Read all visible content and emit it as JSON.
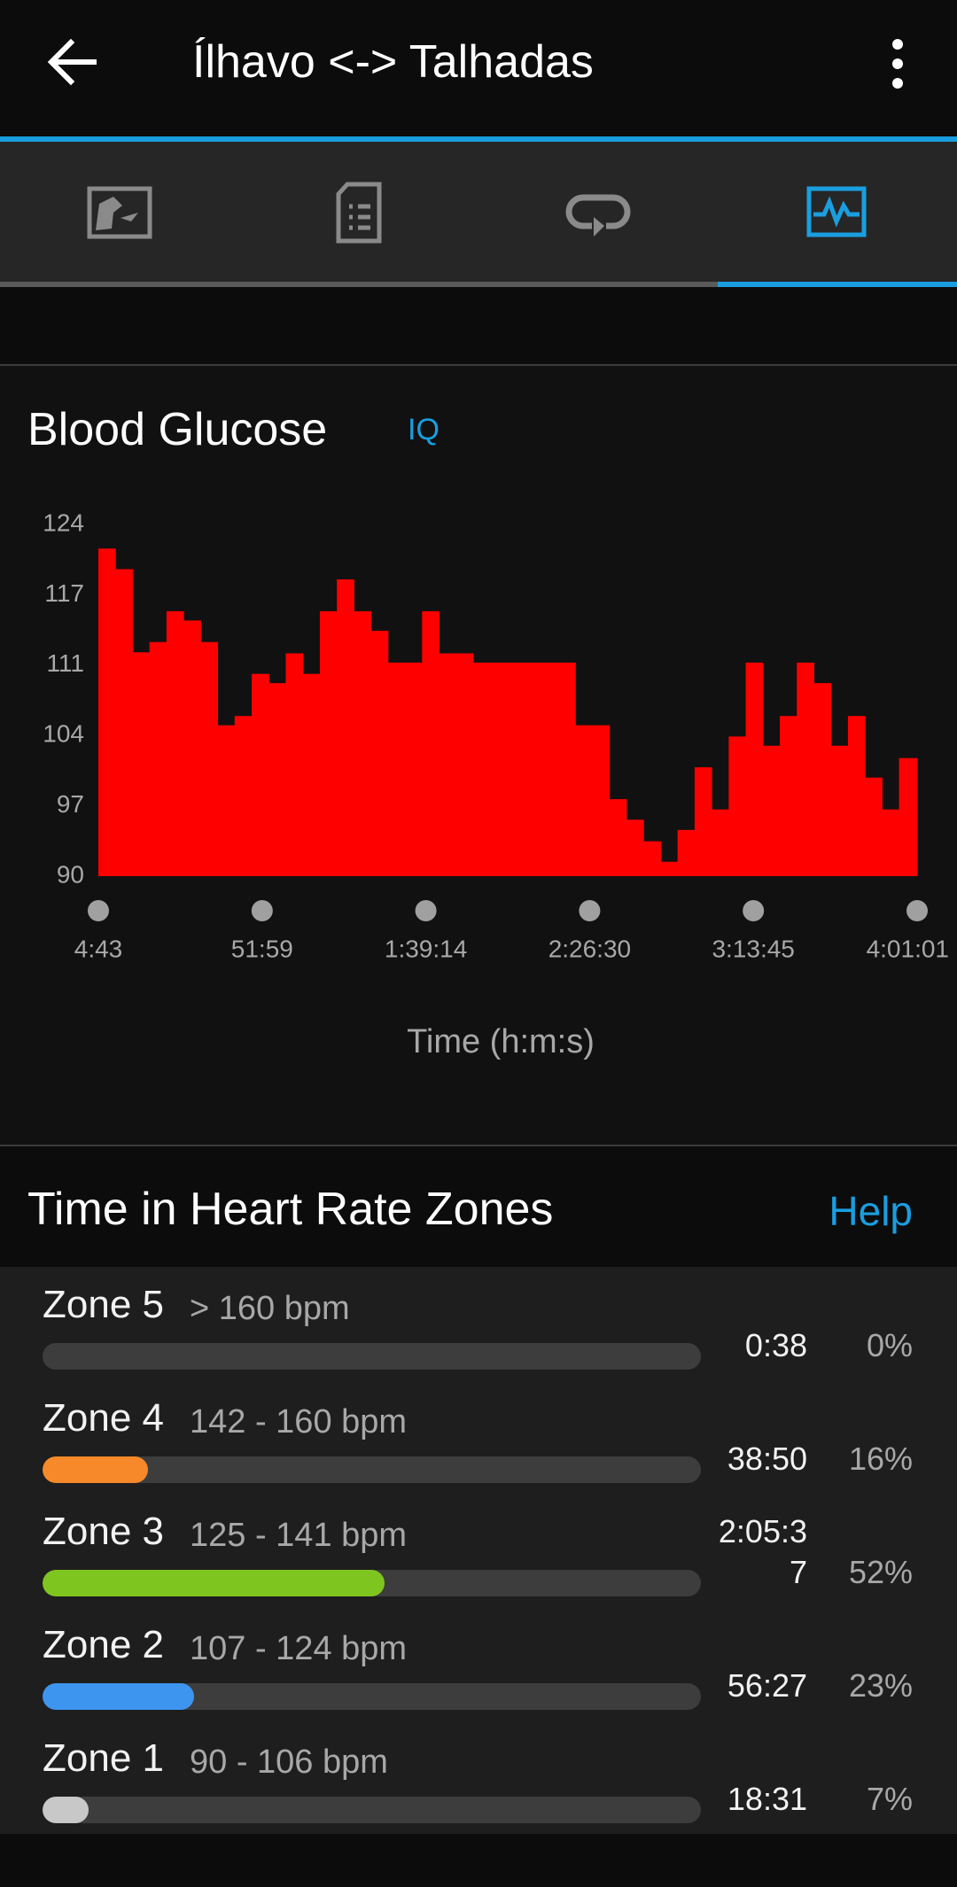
{
  "header": {
    "title": "Ílhavo <-> Talhadas"
  },
  "glucose_chart": {
    "type": "bar",
    "title": "Blood Glucose",
    "badge": "IQ",
    "x_label": "Time (h:m:s)",
    "color": "#ff0000",
    "x": [
      283,
      578,
      873,
      1168,
      1463,
      1758,
      2053,
      2348,
      2643,
      2938,
      3233,
      3528,
      3823,
      4118,
      4413,
      4708,
      5003,
      5298,
      5593,
      5888,
      6183,
      6478,
      6773,
      7068,
      7363,
      7658,
      7953,
      8248,
      8543,
      8838,
      9133,
      9428,
      9723,
      10018,
      10313,
      10608,
      10903,
      11198,
      11493,
      11788,
      12083,
      12378,
      12673,
      12968,
      13263,
      13558,
      13853,
      14148
    ],
    "values": [
      121.9,
      119.9,
      111.8,
      112.8,
      115.8,
      114.9,
      112.8,
      104.7,
      105.6,
      109.7,
      108.8,
      111.7,
      109.7,
      115.8,
      118.9,
      115.8,
      113.9,
      110.8,
      110.8,
      115.8,
      111.7,
      111.7,
      110.8,
      110.8,
      110.8,
      110.8,
      110.8,
      110.8,
      104.7,
      104.7,
      97.5,
      95.5,
      93.4,
      91.4,
      94.5,
      100.6,
      96.5,
      103.6,
      110.8,
      102.7,
      105.6,
      110.8,
      108.8,
      102.7,
      105.6,
      99.6,
      96.5,
      101.5
    ],
    "xlim": [
      283,
      14461
    ],
    "xticks": [
      {
        "value": 283,
        "label": "4:43"
      },
      {
        "value": 3119,
        "label": "51:59"
      },
      {
        "value": 5954,
        "label": "1:39:14"
      },
      {
        "value": 8790,
        "label": "2:26:30"
      },
      {
        "value": 11625,
        "label": "3:13:45"
      },
      {
        "value": 14461,
        "label": "4:01:01"
      }
    ],
    "ylim": [
      90,
      124.25
    ],
    "yticks": [
      90,
      {
        "value": 96.85,
        "label": "97"
      },
      {
        "value": 103.7,
        "label": "104"
      },
      {
        "value": 110.55,
        "label": "111"
      },
      {
        "value": 117.4,
        "label": "117"
      },
      {
        "value": 124.25,
        "label": "124"
      }
    ]
  },
  "zones_section": {
    "title": "Time in Heart Rate Zones",
    "help": "Help",
    "zones": [
      {
        "name": "Zone 5",
        "range": "> 160 bpm",
        "time": "0:38",
        "percent": 0,
        "percent_label": "0%"
      },
      {
        "name": "Zone 4",
        "range": "142 - 160 bpm",
        "time": "38:50",
        "percent": 16,
        "percent_label": "16%",
        "color": "#f7892a"
      },
      {
        "name": "Zone 3",
        "range": "125 - 141 bpm",
        "time": "2:05:37",
        "percent": 52,
        "percent_label": "52%",
        "color": "#7ec61f"
      },
      {
        "name": "Zone 2",
        "range": "107 - 124 bpm",
        "time": "56:27",
        "percent": 23,
        "percent_label": "23%",
        "color": "#3d95f0"
      },
      {
        "name": "Zone 1",
        "range": "90 - 106 bpm",
        "time": "18:31",
        "percent": 7,
        "percent_label": "7%",
        "color": "#c8c8c8"
      }
    ]
  }
}
